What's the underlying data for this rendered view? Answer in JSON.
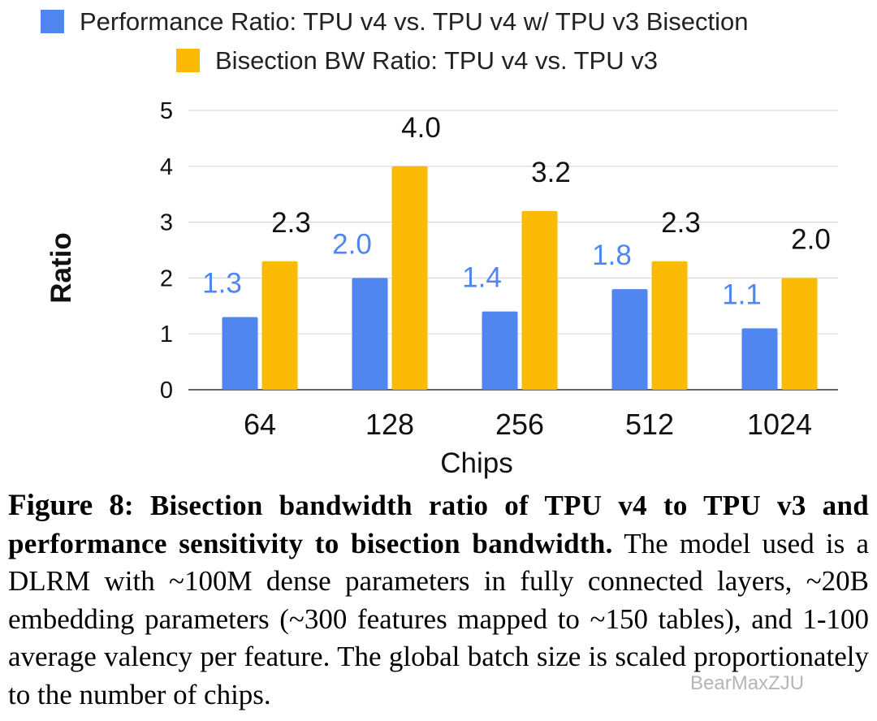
{
  "chart_data": {
    "type": "bar",
    "categories": [
      "64",
      "128",
      "256",
      "512",
      "1024"
    ],
    "series": [
      {
        "name": "Performance Ratio: TPU v4 vs. TPU v4 w/ TPU v3 Bisection",
        "values": [
          1.3,
          2.0,
          1.4,
          1.8,
          1.1
        ],
        "labels": [
          "1.3",
          "2.0",
          "1.4",
          "1.8",
          "1.1"
        ],
        "color": "#4f86f0"
      },
      {
        "name": "Bisection BW Ratio: TPU v4 vs. TPU v3",
        "values": [
          2.3,
          4.0,
          3.2,
          2.3,
          2.0
        ],
        "labels": [
          "2.3",
          "4.0",
          "3.2",
          "2.3",
          "2.0"
        ],
        "color": "#fbbb04"
      }
    ],
    "xlabel": "Chips",
    "ylabel": "Ratio",
    "ylim": [
      0,
      5
    ],
    "yticks": [
      0,
      1,
      2,
      3,
      4,
      5
    ],
    "grid": true,
    "legend_position": "top"
  },
  "caption": {
    "figure_label": "Figure 8",
    "colon": ":",
    "bold_text": " Bisection bandwidth ratio of TPU v4 to TPU v3 and performance sensitivity to bisection bandwidth.",
    "body_text": " The model used is a DLRM with ~100M dense parameters in fully connected layers, ~20B embedding parameters (~300 features mapped to ~150 tables), and 1-100 average valency per feature. The global batch size is scaled proportionately to the number of chips."
  },
  "watermark": "BearMaxZJU"
}
